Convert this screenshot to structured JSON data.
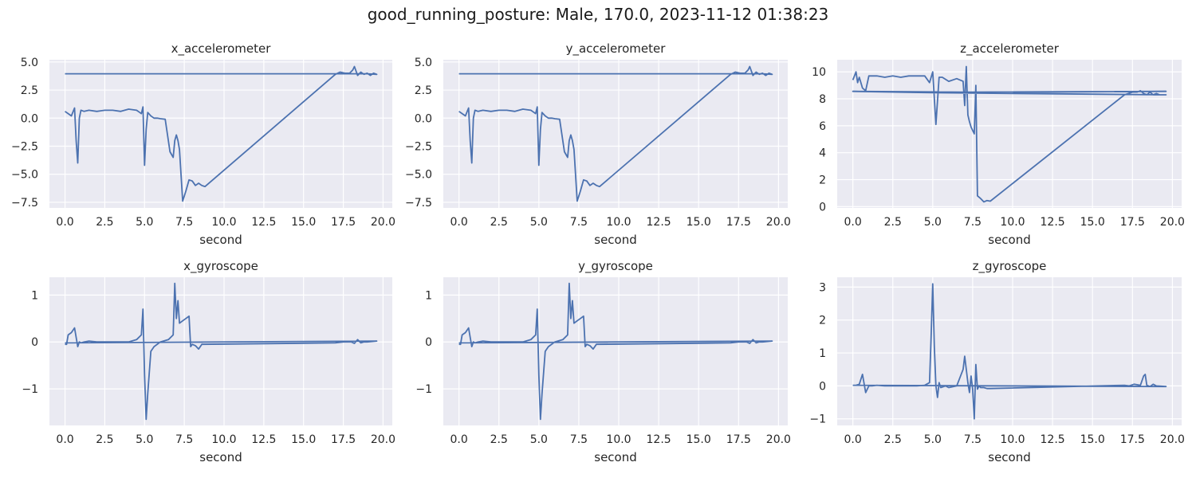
{
  "figure": {
    "title": "good_running_posture: Male, 170.0, 2023-11-12 01:38:23",
    "line_color": "#4c72b0",
    "background_color": "#eaeaf2"
  },
  "chart_data": [
    {
      "type": "line",
      "title": "x_accelerometer",
      "xlabel": "second",
      "xlim": [
        -0.98,
        20.58
      ],
      "ylim": [
        -8.0,
        5.2
      ],
      "grid": true,
      "xticks": [
        0,
        2.5,
        5,
        7.5,
        10,
        12.5,
        15,
        17.5,
        20
      ],
      "xtick_labels": [
        "0.0",
        "2.5",
        "5.0",
        "7.5",
        "10.0",
        "12.5",
        "15.0",
        "17.5",
        "20.0"
      ],
      "yticks": [
        -7.5,
        -5,
        -2.5,
        0,
        2.5,
        5
      ],
      "ytick_labels": [
        "−7.5",
        "−5.0",
        "−2.5",
        "0.0",
        "2.5",
        "5.0"
      ],
      "series": [
        {
          "x": [
            0.0,
            0.2,
            0.4,
            0.6,
            0.7,
            0.8,
            0.9,
            1.0,
            1.2,
            1.5,
            2.0,
            2.5,
            3.0,
            3.5,
            4.0,
            4.5,
            4.7,
            4.8,
            4.9,
            5.0,
            5.1,
            5.2,
            5.4,
            5.6,
            5.8,
            6.0,
            6.3,
            6.6,
            6.8,
            6.9,
            7.0,
            7.1,
            7.2,
            7.4,
            7.6,
            7.8,
            8.0,
            8.2,
            8.4,
            8.6,
            8.8,
            17.0,
            17.3,
            17.6,
            17.9,
            18.1,
            18.2,
            18.4,
            18.6,
            18.8,
            19.0,
            19.2,
            19.4,
            19.6,
            19.0,
            18.0,
            17.0,
            16.0,
            10.0,
            5.0,
            1.0,
            0.0
          ],
          "y": [
            0.6,
            0.4,
            0.2,
            0.9,
            -2.0,
            -4.0,
            0.0,
            0.7,
            0.6,
            0.7,
            0.6,
            0.7,
            0.7,
            0.6,
            0.8,
            0.7,
            0.5,
            0.4,
            1.0,
            -4.2,
            -1.0,
            0.5,
            0.2,
            0.0,
            0.0,
            -0.05,
            -0.1,
            -3.0,
            -3.5,
            -2.0,
            -1.5,
            -2.0,
            -2.8,
            -7.4,
            -6.5,
            -5.5,
            -5.6,
            -6.0,
            -5.8,
            -6.0,
            -6.1,
            3.9,
            4.1,
            4.0,
            4.0,
            4.3,
            4.6,
            3.8,
            4.1,
            3.9,
            4.0,
            3.8,
            4.0,
            3.9,
            3.95,
            3.95,
            3.95,
            3.95,
            3.95,
            3.95,
            3.95,
            3.95
          ]
        }
      ]
    },
    {
      "type": "line",
      "title": "y_accelerometer",
      "xlabel": "second",
      "xlim": [
        -0.98,
        20.58
      ],
      "ylim": [
        -8.0,
        5.2
      ],
      "grid": true,
      "xticks": [
        0,
        2.5,
        5,
        7.5,
        10,
        12.5,
        15,
        17.5,
        20
      ],
      "xtick_labels": [
        "0.0",
        "2.5",
        "5.0",
        "7.5",
        "10.0",
        "12.5",
        "15.0",
        "17.5",
        "20.0"
      ],
      "yticks": [
        -7.5,
        -5,
        -2.5,
        0,
        2.5,
        5
      ],
      "ytick_labels": [
        "−7.5",
        "−5.0",
        "−2.5",
        "0.0",
        "2.5",
        "5.0"
      ],
      "series": [
        {
          "x": [
            0.0,
            0.2,
            0.4,
            0.6,
            0.7,
            0.8,
            0.9,
            1.0,
            1.2,
            1.5,
            2.0,
            2.5,
            3.0,
            3.5,
            4.0,
            4.5,
            4.7,
            4.8,
            4.9,
            5.0,
            5.1,
            5.2,
            5.4,
            5.6,
            5.8,
            6.0,
            6.3,
            6.6,
            6.8,
            6.9,
            7.0,
            7.1,
            7.2,
            7.4,
            7.6,
            7.8,
            8.0,
            8.2,
            8.4,
            8.6,
            8.8,
            17.0,
            17.3,
            17.6,
            17.9,
            18.1,
            18.2,
            18.4,
            18.6,
            18.8,
            19.0,
            19.2,
            19.4,
            19.6,
            19.0,
            18.0,
            17.0,
            16.0,
            10.0,
            5.0,
            1.0,
            0.0
          ],
          "y": [
            0.6,
            0.4,
            0.2,
            0.9,
            -2.0,
            -4.0,
            0.0,
            0.7,
            0.6,
            0.7,
            0.6,
            0.7,
            0.7,
            0.6,
            0.8,
            0.7,
            0.5,
            0.4,
            1.0,
            -4.2,
            -1.0,
            0.5,
            0.2,
            0.0,
            0.0,
            -0.05,
            -0.1,
            -3.0,
            -3.5,
            -2.0,
            -1.5,
            -2.0,
            -2.8,
            -7.4,
            -6.5,
            -5.5,
            -5.6,
            -6.0,
            -5.8,
            -6.0,
            -6.1,
            3.9,
            4.1,
            4.0,
            4.0,
            4.3,
            4.6,
            3.8,
            4.1,
            3.9,
            4.0,
            3.8,
            4.0,
            3.9,
            3.95,
            3.95,
            3.95,
            3.95,
            3.95,
            3.95,
            3.95,
            3.95
          ]
        }
      ]
    },
    {
      "type": "line",
      "title": "z_accelerometer",
      "xlabel": "second",
      "xlim": [
        -0.98,
        20.58
      ],
      "ylim": [
        -0.1,
        10.9
      ],
      "grid": true,
      "xticks": [
        0,
        2.5,
        5,
        7.5,
        10,
        12.5,
        15,
        17.5,
        20
      ],
      "xtick_labels": [
        "0.0",
        "2.5",
        "5.0",
        "7.5",
        "10.0",
        "12.5",
        "15.0",
        "17.5",
        "20.0"
      ],
      "yticks": [
        0,
        2,
        4,
        6,
        8,
        10
      ],
      "ytick_labels": [
        "0",
        "2",
        "4",
        "6",
        "8",
        "10"
      ],
      "series": [
        {
          "x": [
            0.0,
            0.2,
            0.3,
            0.4,
            0.6,
            0.8,
            1.0,
            1.5,
            2.0,
            2.5,
            3.0,
            3.5,
            4.0,
            4.5,
            4.8,
            5.0,
            5.2,
            5.4,
            5.6,
            6.0,
            6.5,
            6.9,
            7.0,
            7.1,
            7.2,
            7.3,
            7.4,
            7.6,
            7.7,
            7.8,
            8.0,
            8.2,
            8.4,
            8.6,
            17.0,
            17.5,
            17.8,
            18.0,
            18.2,
            18.4,
            18.6,
            18.8,
            19.0,
            19.2,
            19.6,
            5.0,
            0.0,
            7.0,
            19.6,
            5.0,
            0.0
          ],
          "y": [
            9.4,
            10.0,
            9.2,
            9.6,
            8.8,
            8.6,
            9.7,
            9.7,
            9.6,
            9.7,
            9.6,
            9.7,
            9.7,
            9.7,
            9.2,
            10.0,
            6.1,
            9.6,
            9.6,
            9.3,
            9.5,
            9.3,
            7.5,
            10.4,
            6.8,
            6.3,
            5.9,
            5.4,
            9.0,
            0.8,
            0.6,
            0.35,
            0.45,
            0.4,
            8.3,
            8.5,
            8.5,
            8.6,
            8.4,
            8.3,
            8.5,
            8.3,
            8.4,
            8.3,
            8.3,
            8.45,
            8.55,
            8.5,
            8.55,
            8.45,
            8.55
          ]
        }
      ]
    },
    {
      "type": "line",
      "title": "x_gyroscope",
      "xlabel": "second",
      "xlim": [
        -0.98,
        20.58
      ],
      "ylim": [
        -1.78,
        1.38
      ],
      "grid": true,
      "xticks": [
        0,
        2.5,
        5,
        7.5,
        10,
        12.5,
        15,
        17.5,
        20
      ],
      "xtick_labels": [
        "0.0",
        "2.5",
        "5.0",
        "7.5",
        "10.0",
        "12.5",
        "15.0",
        "17.5",
        "20.0"
      ],
      "yticks": [
        -1,
        0,
        1
      ],
      "ytick_labels": [
        "−1",
        "0",
        "1"
      ],
      "series": [
        {
          "x": [
            0.0,
            0.1,
            0.2,
            0.4,
            0.6,
            0.8,
            0.9,
            1.0,
            1.2,
            1.5,
            2.0,
            3.0,
            4.0,
            4.5,
            4.8,
            4.9,
            5.0,
            5.1,
            5.2,
            5.4,
            5.6,
            6.0,
            6.5,
            6.8,
            6.9,
            7.0,
            7.1,
            7.2,
            7.4,
            7.6,
            7.8,
            7.9,
            8.0,
            8.2,
            8.4,
            8.6,
            17.0,
            17.5,
            18.0,
            18.2,
            18.4,
            18.6,
            18.8,
            19.0,
            19.6,
            0.0
          ],
          "y": [
            -0.05,
            -0.05,
            0.15,
            0.2,
            0.3,
            -0.1,
            0.0,
            -0.02,
            0.0,
            0.02,
            0.0,
            0.0,
            0.0,
            0.05,
            0.15,
            0.7,
            -0.7,
            -1.65,
            -1.1,
            -0.2,
            -0.1,
            0.0,
            0.05,
            0.15,
            1.25,
            0.5,
            0.88,
            0.4,
            0.45,
            0.5,
            0.55,
            -0.1,
            -0.05,
            -0.08,
            -0.15,
            -0.05,
            -0.02,
            0.0,
            0.0,
            -0.03,
            0.05,
            -0.02,
            0.0,
            0.0,
            0.02,
            -0.02
          ]
        }
      ]
    },
    {
      "type": "line",
      "title": "y_gyroscope",
      "xlabel": "second",
      "xlim": [
        -0.98,
        20.58
      ],
      "ylim": [
        -1.78,
        1.38
      ],
      "grid": true,
      "xticks": [
        0,
        2.5,
        5,
        7.5,
        10,
        12.5,
        15,
        17.5,
        20
      ],
      "xtick_labels": [
        "0.0",
        "2.5",
        "5.0",
        "7.5",
        "10.0",
        "12.5",
        "15.0",
        "17.5",
        "20.0"
      ],
      "yticks": [
        -1,
        0,
        1
      ],
      "ytick_labels": [
        "−1",
        "0",
        "1"
      ],
      "series": [
        {
          "x": [
            0.0,
            0.1,
            0.2,
            0.4,
            0.6,
            0.8,
            0.9,
            1.0,
            1.2,
            1.5,
            2.0,
            3.0,
            4.0,
            4.5,
            4.8,
            4.9,
            5.0,
            5.1,
            5.2,
            5.4,
            5.6,
            6.0,
            6.5,
            6.8,
            6.9,
            7.0,
            7.1,
            7.2,
            7.4,
            7.6,
            7.8,
            7.9,
            8.0,
            8.2,
            8.4,
            8.6,
            17.0,
            17.5,
            18.0,
            18.2,
            18.4,
            18.6,
            18.8,
            19.0,
            19.6,
            0.0
          ],
          "y": [
            -0.05,
            -0.05,
            0.15,
            0.2,
            0.3,
            -0.1,
            0.0,
            -0.02,
            0.0,
            0.02,
            0.0,
            0.0,
            0.0,
            0.05,
            0.15,
            0.7,
            -0.7,
            -1.65,
            -1.1,
            -0.2,
            -0.1,
            0.0,
            0.05,
            0.15,
            1.25,
            0.5,
            0.88,
            0.4,
            0.45,
            0.5,
            0.55,
            -0.1,
            -0.05,
            -0.08,
            -0.15,
            -0.05,
            -0.02,
            0.0,
            0.0,
            -0.03,
            0.05,
            -0.02,
            0.0,
            0.0,
            0.02,
            -0.02
          ]
        }
      ]
    },
    {
      "type": "line",
      "title": "z_gyroscope",
      "xlabel": "second",
      "xlim": [
        -0.98,
        20.58
      ],
      "ylim": [
        -1.2,
        3.3
      ],
      "grid": true,
      "xticks": [
        0,
        2.5,
        5,
        7.5,
        10,
        12.5,
        15,
        17.5,
        20
      ],
      "xtick_labels": [
        "0.0",
        "2.5",
        "5.0",
        "7.5",
        "10.0",
        "12.5",
        "15.0",
        "17.5",
        "20.0"
      ],
      "yticks": [
        -1,
        0,
        1,
        2,
        3
      ],
      "ytick_labels": [
        "−1",
        "0",
        "1",
        "2",
        "3"
      ],
      "series": [
        {
          "x": [
            0.0,
            0.2,
            0.4,
            0.6,
            0.8,
            1.0,
            1.2,
            1.5,
            2.0,
            3.0,
            4.0,
            4.5,
            4.8,
            4.9,
            5.0,
            5.1,
            5.2,
            5.3,
            5.4,
            5.5,
            5.8,
            6.0,
            6.5,
            6.9,
            7.0,
            7.2,
            7.3,
            7.4,
            7.5,
            7.6,
            7.7,
            7.8,
            7.9,
            8.0,
            8.2,
            8.4,
            8.6,
            17.0,
            17.3,
            17.6,
            18.0,
            18.2,
            18.3,
            18.4,
            18.6,
            18.8,
            19.0,
            19.6,
            0.0
          ],
          "y": [
            0.02,
            0.02,
            0.05,
            0.35,
            -0.2,
            0.0,
            0.0,
            0.02,
            0.0,
            0.0,
            0.0,
            0.02,
            0.1,
            1.5,
            3.1,
            1.2,
            0.0,
            -0.35,
            0.1,
            -0.05,
            0.0,
            -0.05,
            0.0,
            0.5,
            0.9,
            0.1,
            -0.2,
            0.3,
            -0.1,
            -1.0,
            0.65,
            -0.1,
            0.0,
            -0.05,
            -0.05,
            -0.08,
            -0.08,
            0.02,
            0.0,
            0.05,
            0.02,
            0.3,
            0.35,
            0.02,
            -0.02,
            0.05,
            0.0,
            -0.02,
            0.02
          ]
        }
      ]
    }
  ]
}
